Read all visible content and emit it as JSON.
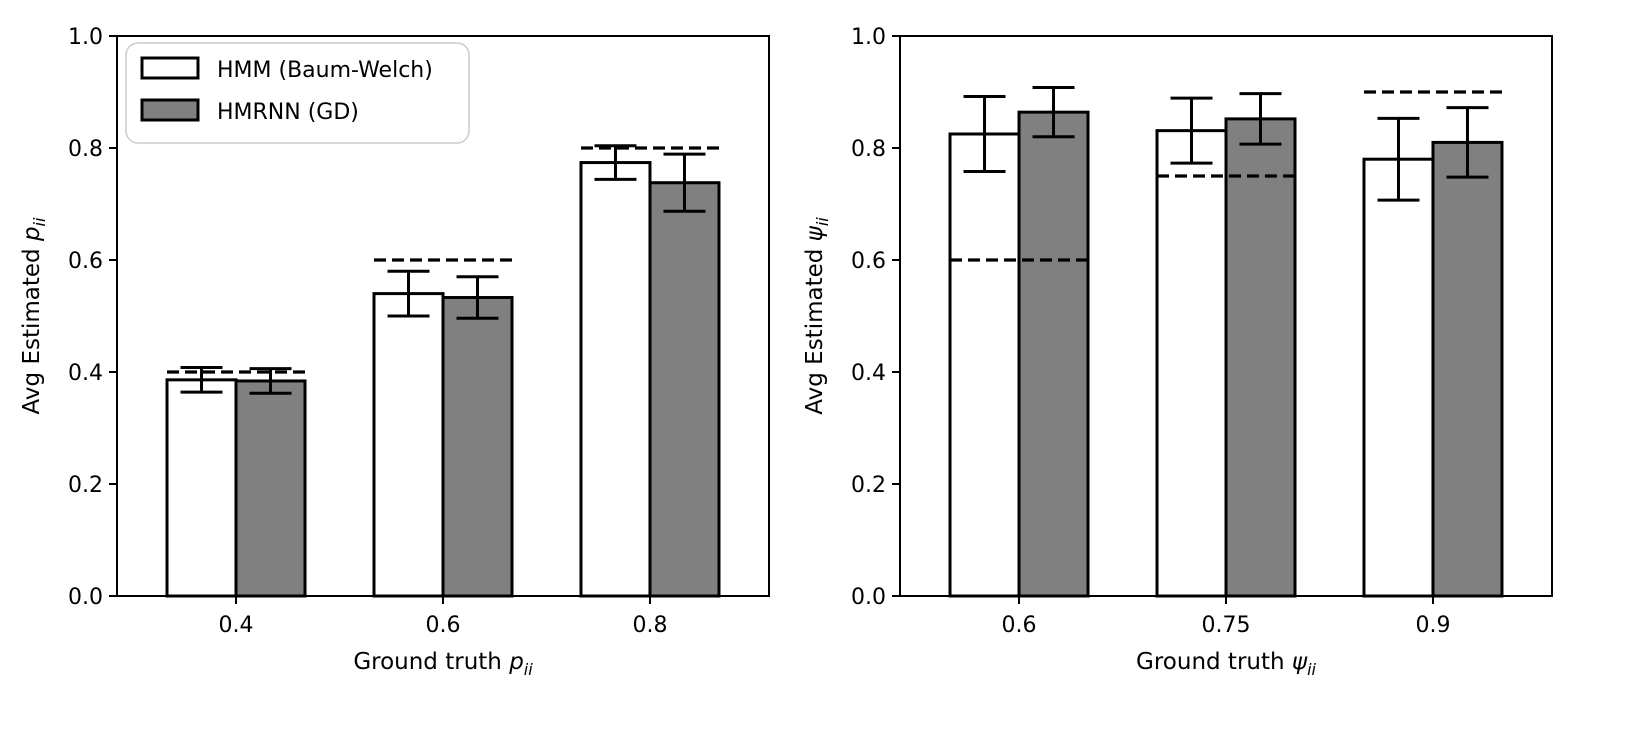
{
  "chart_data": [
    {
      "type": "bar",
      "categories": [
        "0.4",
        "0.6",
        "0.8"
      ],
      "series": [
        {
          "name": "HMM (Baum-Welch)",
          "values": [
            0.386,
            0.54,
            0.774
          ],
          "errors": [
            0.022,
            0.04,
            0.03
          ],
          "color": "#ffffff"
        },
        {
          "name": "HMRNN (GD)",
          "values": [
            0.384,
            0.533,
            0.738
          ],
          "errors": [
            0.022,
            0.037,
            0.051
          ],
          "color": "#808080"
        }
      ],
      "ground_truth": [
        0.4,
        0.6,
        0.8
      ],
      "xlabel": {
        "main": "Ground truth ",
        "symbol": "p",
        "sub": "ii"
      },
      "ylabel": {
        "main": "Avg Estimated ",
        "symbol": "p",
        "sub": "ii"
      },
      "ylim": [
        0,
        1.0
      ],
      "yticks": [
        "0.0",
        "0.2",
        "0.4",
        "0.6",
        "0.8",
        "1.0"
      ],
      "legend_position": "top-left"
    },
    {
      "type": "bar",
      "categories": [
        "0.6",
        "0.75",
        "0.9"
      ],
      "series": [
        {
          "name": "HMM (Baum-Welch)",
          "values": [
            0.825,
            0.831,
            0.78
          ],
          "errors": [
            0.067,
            0.058,
            0.073
          ],
          "color": "#ffffff"
        },
        {
          "name": "HMRNN (GD)",
          "values": [
            0.864,
            0.852,
            0.81
          ],
          "errors": [
            0.044,
            0.045,
            0.062
          ],
          "color": "#808080"
        }
      ],
      "ground_truth": [
        0.6,
        0.75,
        0.9
      ],
      "xlabel": {
        "main": "Ground truth ",
        "symbol": "ψ",
        "sub": "ii"
      },
      "ylabel": {
        "main": "Avg Estimated ",
        "symbol": "ψ",
        "sub": "ii"
      },
      "ylim": [
        0,
        1.0
      ],
      "yticks": [
        "0.0",
        "0.2",
        "0.4",
        "0.6",
        "0.8",
        "1.0"
      ]
    }
  ],
  "legend": [
    {
      "label": "HMM (Baum-Welch)",
      "color": "#ffffff"
    },
    {
      "label": "HMRNN (GD)",
      "color": "#808080"
    }
  ]
}
